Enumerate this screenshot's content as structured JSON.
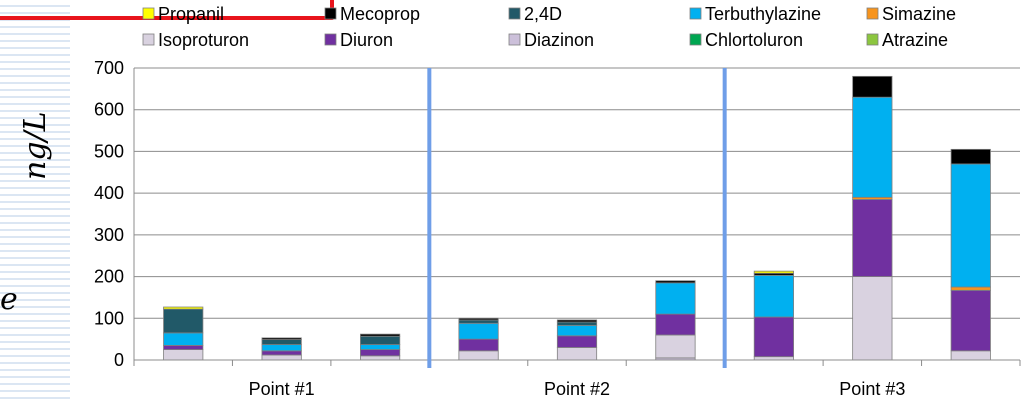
{
  "chart_data": {
    "type": "bar",
    "stacked": true,
    "y_axis_label": "ng/L",
    "side_fragment": "e",
    "ylim": [
      0,
      700
    ],
    "yticks": [
      0,
      100,
      200,
      300,
      400,
      500,
      600,
      700
    ],
    "grid": true,
    "legend_placement": "top",
    "groups": [
      "Point #1",
      "Point #2",
      "Point #3"
    ],
    "bars_per_group": 3,
    "series": [
      {
        "name": "Diazinon",
        "color": "#ccc0da",
        "values": [
          0,
          0,
          0,
          0,
          0,
          5,
          0,
          0,
          0
        ]
      },
      {
        "name": "Isoproturon",
        "color": "#d9d2e0",
        "values": [
          25,
          12,
          10,
          22,
          30,
          55,
          8,
          200,
          22
        ]
      },
      {
        "name": "Diuron",
        "color": "#7030a0",
        "values": [
          10,
          10,
          15,
          28,
          28,
          50,
          95,
          185,
          145
        ]
      },
      {
        "name": "Chlortoluron",
        "color": "#00a651",
        "values": [
          0,
          0,
          0,
          0,
          0,
          0,
          0,
          0,
          0
        ]
      },
      {
        "name": "Atrazine",
        "color": "#8cc63f",
        "values": [
          0,
          0,
          0,
          0,
          0,
          0,
          0,
          0,
          0
        ]
      },
      {
        "name": "Simazine",
        "color": "#f7941d",
        "values": [
          0,
          0,
          0,
          0,
          0,
          0,
          0,
          5,
          8
        ]
      },
      {
        "name": "Terbuthylazine",
        "color": "#00b0f0",
        "values": [
          30,
          15,
          12,
          38,
          25,
          75,
          100,
          240,
          295
        ]
      },
      {
        "name": "2,4D",
        "color": "#215968",
        "values": [
          57,
          12,
          20,
          8,
          8,
          0,
          0,
          0,
          0
        ]
      },
      {
        "name": "Mecoprop",
        "color": "#000000",
        "values": [
          0,
          4,
          5,
          4,
          5,
          5,
          5,
          50,
          35
        ]
      },
      {
        "name": "Propanil",
        "color": "#ffff00",
        "values": [
          5,
          0,
          0,
          0,
          0,
          0,
          5,
          0,
          0
        ]
      }
    ],
    "legend": [
      {
        "label": "Propanil",
        "color": "#ffff00"
      },
      {
        "label": "Mecoprop",
        "color": "#000000"
      },
      {
        "label": "2,4D",
        "color": "#215968"
      },
      {
        "label": "Terbuthylazine",
        "color": "#00b0f0"
      },
      {
        "label": "Simazine",
        "color": "#f7941d"
      },
      {
        "label": "Isoproturon",
        "color": "#d9d2e0"
      },
      {
        "label": "Diuron",
        "color": "#7030a0"
      },
      {
        "label": "Diazinon",
        "color": "#ccc0da"
      },
      {
        "label": "Chlortoluron",
        "color": "#00a651"
      },
      {
        "label": "Atrazine",
        "color": "#8cc63f"
      }
    ],
    "separator_color": "#6f9ee8"
  }
}
